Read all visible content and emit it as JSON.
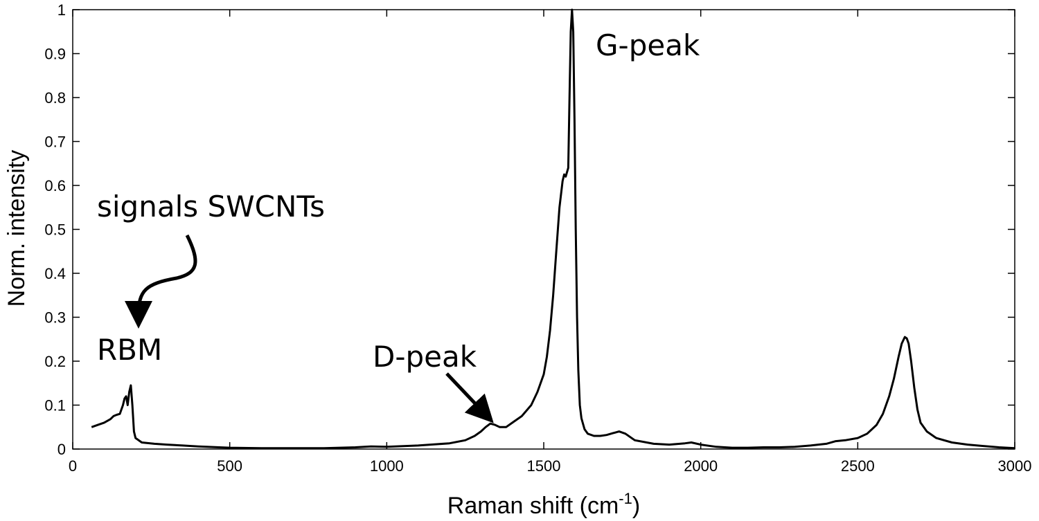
{
  "chart_data": {
    "type": "line",
    "title": "",
    "xlabel": "Raman shift (cm",
    "xlabel_superscript": "-1",
    "xlabel_suffix": ")",
    "ylabel": "Norm. intensity",
    "xlim": [
      0,
      3000
    ],
    "ylim": [
      0,
      1
    ],
    "grid": false,
    "xticks": [
      0,
      500,
      1000,
      1500,
      2000,
      2500,
      3000
    ],
    "yticks": [
      0,
      0.1,
      0.2,
      0.3,
      0.4,
      0.5,
      0.6,
      0.7,
      0.8,
      0.9,
      1
    ],
    "xtick_labels": [
      "0",
      "500",
      "1000",
      "1500",
      "2000",
      "2500",
      "3000"
    ],
    "ytick_labels": [
      "0",
      "0.1",
      "0.2",
      "0.3",
      "0.4",
      "0.5",
      "0.6",
      "0.7",
      "0.8",
      "0.9",
      "1"
    ],
    "series": [
      {
        "color": "#000000",
        "x": [
          60,
          80,
          100,
          120,
          130,
          140,
          150,
          160,
          165,
          170,
          175,
          180,
          185,
          190,
          195,
          200,
          220,
          260,
          300,
          350,
          400,
          500,
          600,
          700,
          800,
          900,
          950,
          1000,
          1100,
          1200,
          1250,
          1280,
          1300,
          1315,
          1330,
          1345,
          1360,
          1380,
          1400,
          1430,
          1460,
          1480,
          1500,
          1510,
          1520,
          1530,
          1540,
          1550,
          1560,
          1565,
          1570,
          1578,
          1582,
          1586,
          1590,
          1594,
          1598,
          1602,
          1606,
          1610,
          1615,
          1620,
          1630,
          1640,
          1660,
          1680,
          1700,
          1720,
          1740,
          1760,
          1790,
          1850,
          1900,
          1950,
          1970,
          2000,
          2050,
          2100,
          2150,
          2200,
          2250,
          2300,
          2350,
          2400,
          2430,
          2460,
          2500,
          2530,
          2560,
          2580,
          2600,
          2615,
          2630,
          2640,
          2650,
          2656,
          2662,
          2670,
          2680,
          2690,
          2700,
          2720,
          2750,
          2800,
          2850,
          2900,
          2950,
          3000
        ],
        "y": [
          0.05,
          0.055,
          0.06,
          0.068,
          0.075,
          0.078,
          0.08,
          0.1,
          0.115,
          0.12,
          0.1,
          0.13,
          0.145,
          0.1,
          0.04,
          0.025,
          0.015,
          0.012,
          0.01,
          0.008,
          0.006,
          0.003,
          0.002,
          0.002,
          0.002,
          0.004,
          0.006,
          0.005,
          0.008,
          0.013,
          0.02,
          0.03,
          0.04,
          0.05,
          0.058,
          0.055,
          0.05,
          0.05,
          0.06,
          0.075,
          0.1,
          0.13,
          0.17,
          0.21,
          0.27,
          0.35,
          0.45,
          0.55,
          0.61,
          0.625,
          0.62,
          0.64,
          0.8,
          0.95,
          1.0,
          0.95,
          0.75,
          0.5,
          0.3,
          0.18,
          0.1,
          0.07,
          0.045,
          0.035,
          0.03,
          0.03,
          0.032,
          0.036,
          0.04,
          0.035,
          0.02,
          0.012,
          0.01,
          0.013,
          0.015,
          0.01,
          0.005,
          0.003,
          0.003,
          0.004,
          0.004,
          0.005,
          0.008,
          0.012,
          0.018,
          0.02,
          0.025,
          0.035,
          0.055,
          0.08,
          0.12,
          0.16,
          0.21,
          0.24,
          0.255,
          0.252,
          0.24,
          0.2,
          0.14,
          0.09,
          0.06,
          0.04,
          0.025,
          0.015,
          0.01,
          0.007,
          0.004,
          0.002
        ]
      }
    ],
    "annotations": [
      {
        "text": "G-peak",
        "x": 1600,
        "y": 0.93
      },
      {
        "text": "D-peak",
        "x": 1200,
        "y": 0.2
      },
      {
        "text": "RBM",
        "x": 70,
        "y": 0.22
      },
      {
        "text": "signals SWCNTs",
        "x": 70,
        "y": 0.52
      }
    ]
  }
}
